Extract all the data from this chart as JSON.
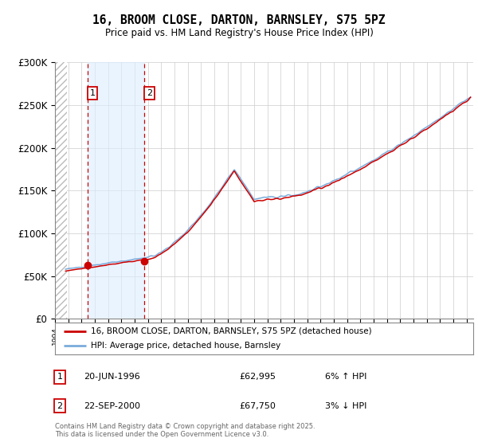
{
  "title": "16, BROOM CLOSE, DARTON, BARNSLEY, S75 5PZ",
  "subtitle": "Price paid vs. HM Land Registry's House Price Index (HPI)",
  "footer": "Contains HM Land Registry data © Crown copyright and database right 2025.\nThis data is licensed under the Open Government Licence v3.0.",
  "legend_line1": "16, BROOM CLOSE, DARTON, BARNSLEY, S75 5PZ (detached house)",
  "legend_line2": "HPI: Average price, detached house, Barnsley",
  "sale1_date": "20-JUN-1996",
  "sale1_price": "£62,995",
  "sale1_hpi": "6% ↑ HPI",
  "sale2_date": "22-SEP-2000",
  "sale2_price": "£67,750",
  "sale2_hpi": "3% ↓ HPI",
  "xmin": 1994.0,
  "xmax": 2025.5,
  "ymin": 0,
  "ymax": 300000,
  "yticks": [
    0,
    50000,
    100000,
    150000,
    200000,
    250000,
    300000
  ],
  "ytick_labels": [
    "£0",
    "£50K",
    "£100K",
    "£150K",
    "£200K",
    "£250K",
    "£300K"
  ],
  "sale1_x": 1996.47,
  "sale1_y": 62995,
  "sale2_x": 2000.73,
  "sale2_y": 67750,
  "red_line_color": "#cc0000",
  "blue_line_color": "#7aabdb",
  "sale_marker_color": "#cc0000",
  "shade_color": "#ddeeff",
  "grid_color": "#cccccc",
  "bg_color": "#ffffff"
}
